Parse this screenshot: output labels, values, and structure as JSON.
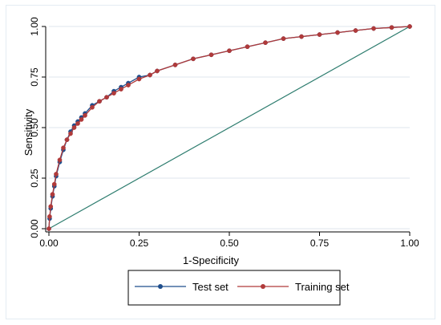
{
  "chart_data": {
    "type": "line",
    "xlabel": "1-Specificity",
    "ylabel": "Sensitivity",
    "xlim": [
      0,
      1
    ],
    "ylim": [
      0,
      1
    ],
    "xticks": [
      "0.00",
      "0.25",
      "0.50",
      "0.75",
      "1.00"
    ],
    "yticks": [
      "0.00",
      "0.25",
      "0.50",
      "0.75",
      "1.00"
    ],
    "grid": "horizontal",
    "legend_position": "bottom-center",
    "reference_line": {
      "x": [
        0,
        1
      ],
      "y": [
        0,
        1
      ],
      "color": "#2e7d6f"
    },
    "series": [
      {
        "name": "Test set",
        "color": "#1f4e8c",
        "x": [
          0.0,
          0.002,
          0.005,
          0.01,
          0.015,
          0.02,
          0.03,
          0.04,
          0.05,
          0.06,
          0.07,
          0.08,
          0.09,
          0.1,
          0.12,
          0.14,
          0.16,
          0.18,
          0.2,
          0.22,
          0.25,
          0.28,
          0.3,
          0.35,
          0.4,
          0.45,
          0.5,
          0.55,
          0.6,
          0.65,
          0.7,
          0.75,
          0.8,
          0.85,
          0.9,
          0.95,
          1.0
        ],
        "y": [
          0.0,
          0.05,
          0.1,
          0.16,
          0.21,
          0.26,
          0.33,
          0.39,
          0.44,
          0.48,
          0.51,
          0.53,
          0.55,
          0.57,
          0.61,
          0.63,
          0.65,
          0.68,
          0.7,
          0.72,
          0.75,
          0.76,
          0.78,
          0.81,
          0.84,
          0.86,
          0.88,
          0.9,
          0.92,
          0.94,
          0.95,
          0.96,
          0.97,
          0.98,
          0.99,
          0.995,
          1.0
        ]
      },
      {
        "name": "Training set",
        "color": "#b03a3a",
        "x": [
          0.0,
          0.002,
          0.005,
          0.01,
          0.015,
          0.02,
          0.03,
          0.04,
          0.05,
          0.06,
          0.07,
          0.08,
          0.09,
          0.1,
          0.12,
          0.14,
          0.16,
          0.18,
          0.2,
          0.22,
          0.25,
          0.28,
          0.3,
          0.35,
          0.4,
          0.45,
          0.5,
          0.55,
          0.6,
          0.65,
          0.7,
          0.75,
          0.8,
          0.85,
          0.9,
          0.95,
          1.0
        ],
        "y": [
          0.0,
          0.06,
          0.11,
          0.17,
          0.22,
          0.27,
          0.34,
          0.4,
          0.44,
          0.47,
          0.5,
          0.52,
          0.54,
          0.56,
          0.6,
          0.63,
          0.65,
          0.67,
          0.69,
          0.71,
          0.74,
          0.76,
          0.78,
          0.81,
          0.84,
          0.86,
          0.88,
          0.9,
          0.92,
          0.94,
          0.95,
          0.96,
          0.97,
          0.98,
          0.99,
          0.995,
          1.0
        ]
      }
    ]
  }
}
